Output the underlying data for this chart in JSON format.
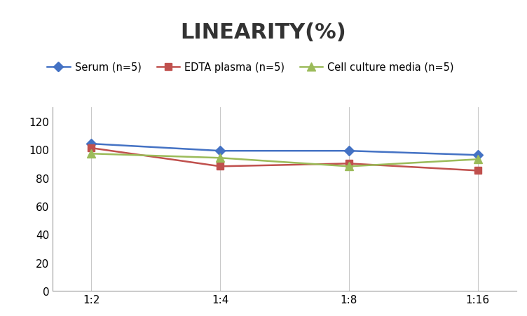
{
  "title": "LINEARITY(%)",
  "x_labels": [
    "1:2",
    "1:4",
    "1:8",
    "1:16"
  ],
  "x_positions": [
    0,
    1,
    2,
    3
  ],
  "series": [
    {
      "label": "Serum (n=5)",
      "values": [
        104,
        99,
        99,
        96
      ],
      "color": "#4472C4",
      "marker": "D",
      "marker_size": 7,
      "linewidth": 1.8
    },
    {
      "label": "EDTA plasma (n=5)",
      "values": [
        101,
        88,
        90,
        85
      ],
      "color": "#C0504D",
      "marker": "s",
      "marker_size": 7,
      "linewidth": 1.8
    },
    {
      "label": "Cell culture media (n=5)",
      "values": [
        97,
        94,
        88,
        93
      ],
      "color": "#9BBB59",
      "marker": "^",
      "marker_size": 8,
      "linewidth": 1.8
    }
  ],
  "ylim": [
    0,
    130
  ],
  "yticks": [
    0,
    20,
    40,
    60,
    80,
    100,
    120
  ],
  "title_fontsize": 22,
  "legend_fontsize": 10.5,
  "tick_fontsize": 11,
  "background_color": "#ffffff",
  "grid_color": "#c8c8c8",
  "grid_linewidth": 0.8
}
